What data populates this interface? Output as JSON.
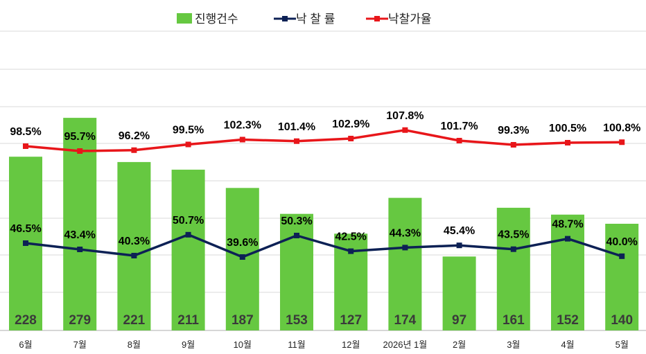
{
  "colors": {
    "bars": "#66c841",
    "rate_line": "#0d2155",
    "price_line": "#e8161a",
    "grid": "#d9d9d9",
    "axis": "#c8c8c8"
  },
  "chart_data": {
    "type": "bar",
    "categories": [
      "6월",
      "7월",
      "8월",
      "9월",
      "10월",
      "11월",
      "12월",
      "2026년 1월",
      "2월",
      "3월",
      "4월",
      "5월"
    ],
    "series": [
      {
        "name": "진행건수",
        "type": "bar",
        "values": [
          228,
          279,
          221,
          211,
          187,
          153,
          127,
          174,
          97,
          161,
          152,
          140
        ],
        "labels": [
          "228",
          "279",
          "221",
          "211",
          "187",
          "153",
          "127",
          "174",
          "97",
          "161",
          "152",
          "140"
        ]
      },
      {
        "name": "낙 찰 률",
        "type": "line",
        "values": [
          46.5,
          43.4,
          40.3,
          50.7,
          39.6,
          50.3,
          42.5,
          44.3,
          45.4,
          43.5,
          48.7,
          40.0
        ],
        "labels": [
          "46.5%",
          "43.4%",
          "40.3%",
          "50.7%",
          "39.6%",
          "50.3%",
          "42.5%",
          "44.3%",
          "45.4%",
          "43.5%",
          "48.7%",
          "40.0%"
        ]
      },
      {
        "name": "낙찰가율",
        "type": "line",
        "values": [
          98.5,
          95.7,
          96.2,
          99.5,
          102.3,
          101.4,
          102.9,
          107.8,
          101.7,
          99.3,
          100.5,
          100.8
        ],
        "labels": [
          "98.5%",
          "95.7%",
          "96.2%",
          "99.5%",
          "102.3%",
          "101.4%",
          "102.9%",
          "107.8%",
          "101.7%",
          "99.3%",
          "100.5%",
          "100.8%"
        ]
      }
    ],
    "legend": "top-center",
    "grid": true
  }
}
